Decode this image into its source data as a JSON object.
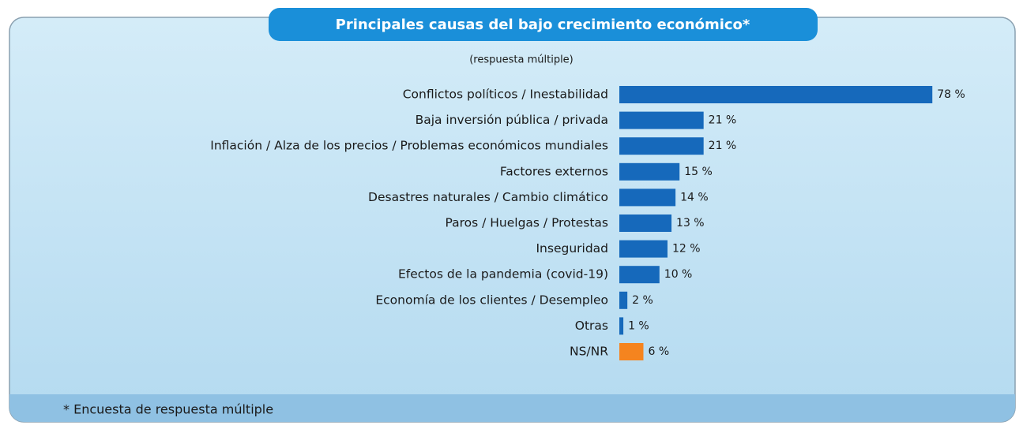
{
  "chart_data": {
    "type": "bar",
    "orientation": "horizontal",
    "title": "Principales causas del bajo crecimiento económico*",
    "subtitle": "(respuesta múltiple)",
    "footnote": "* Encuesta de respuesta múltiple",
    "categories": [
      "Conflictos políticos / Inestabilidad",
      "Baja inversión pública / privada",
      "Inflación / Alza de los precios / Problemas económicos mundiales",
      "Factores externos",
      "Desastres naturales / Cambio climático",
      "Paros / Huelgas / Protestas",
      "Inseguridad",
      "Efectos de la pandemia (covid-19)",
      "Economía de los clientes / Desempleo",
      "Otras",
      "NS/NR"
    ],
    "values": [
      78,
      21,
      21,
      15,
      14,
      13,
      12,
      10,
      2,
      1,
      6
    ],
    "value_labels": [
      "78 %",
      "21 %",
      "21 %",
      "15 %",
      "14 %",
      "13 %",
      "12 %",
      "10 %",
      "2 %",
      "1 %",
      "6 %"
    ],
    "colors": [
      "#1669bb",
      "#1669bb",
      "#1669bb",
      "#1669bb",
      "#1669bb",
      "#1669bb",
      "#1669bb",
      "#1669bb",
      "#1669bb",
      "#1669bb",
      "#f5841f"
    ]
  }
}
